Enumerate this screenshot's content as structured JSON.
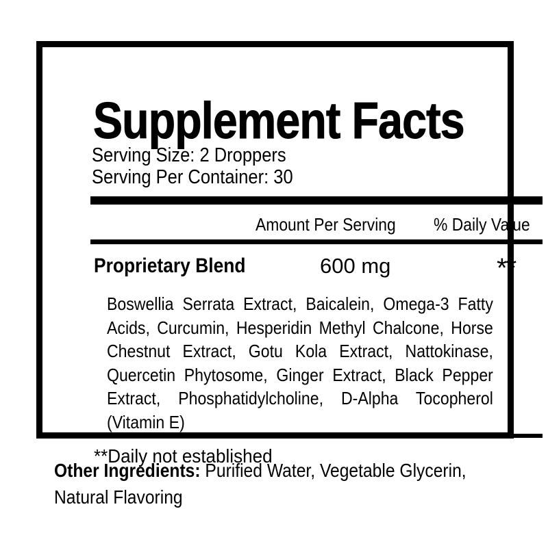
{
  "label": {
    "title": "Supplement Facts",
    "serving_size": "Serving Size: 2 Droppers",
    "servings_per_container": "Serving Per Container: 30",
    "columns": {
      "amount": "Amount Per Serving",
      "daily_value": "% Daily Value"
    },
    "blend": {
      "name": "Proprietary Blend",
      "amount": "600 mg",
      "daily_value": "**",
      "ingredients": "Boswellia Serrata Extract, Baicalein, Omega-3 Fatty Acids, Curcumin, Hesperidin Methyl Chalcone, Horse Chestnut Extract, Gotu Kola Extract, Nattokinase, Quercetin Phytosome, Ginger Extract, Black Pepper Extract, Phosphatidylcholine, D-Alpha Tocopherol (Vitamin E)"
    },
    "footnote": "**Daily not established",
    "other_ingredients": {
      "label": "Other Ingredients:",
      "value": " Purified Water, Vegetable Glycerin, Natural Flavoring"
    }
  },
  "colors": {
    "text": "#000000",
    "background": "#ffffff",
    "rule": "#000000"
  }
}
